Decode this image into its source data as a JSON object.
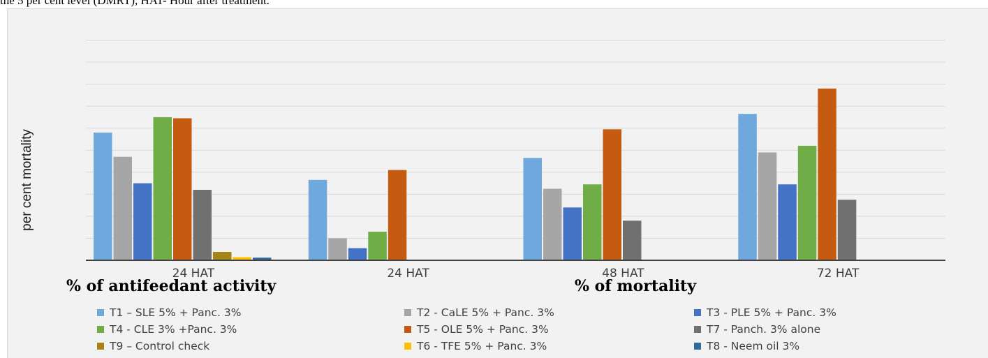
{
  "caption": "the 5 per cent level (DMRT), HAT- Hour after treatment.",
  "group_titles": {
    "antifeedant": "% of antifeedant activity",
    "mortality": "% of mortality"
  },
  "colors": {
    "panel_background": "#f2f2f2",
    "gridline": "#d9d9d9",
    "axis": "#404040"
  },
  "chart_data": {
    "type": "bar",
    "title": "",
    "xlabel": "",
    "ylabel": "per cent mortality",
    "ylim": [
      0,
      100
    ],
    "y_tick_labels_shown": false,
    "grid": true,
    "legend_position": "bottom",
    "categories": [
      "24 HAT",
      "24 HAT",
      "48 HAT",
      "72 HAT"
    ],
    "series": [
      {
        "name": "T1 – SLE 5% + Panc. 3%",
        "color": "#6fa8dc",
        "values": [
          58,
          36.5,
          46.5,
          66.5
        ]
      },
      {
        "name": "T2 - CaLE 5% + Panc. 3%",
        "color": "#a6a6a6",
        "values": [
          47,
          10,
          32.5,
          49
        ]
      },
      {
        "name": "T3 - PLE 5% +  Panc. 3%",
        "color": "#4472c4",
        "values": [
          35,
          5.5,
          24,
          34.5
        ]
      },
      {
        "name": "T4 - CLE 3% +Panc. 3%",
        "color": "#70ad47",
        "values": [
          65,
          13,
          34.5,
          52
        ]
      },
      {
        "name": "T5 - OLE 5% + Panc. 3%",
        "color": "#c55a11",
        "values": [
          64.5,
          41,
          59.5,
          78
        ]
      },
      {
        "name": "T7 - Panch. 3%  alone",
        "color": "#707070",
        "values": [
          32,
          0,
          18,
          27.5
        ]
      },
      {
        "name": "T9 – Control check",
        "color": "#a5841a",
        "values": [
          3.8,
          0,
          0,
          0
        ]
      },
      {
        "name": "T6 - TFE 5%  + Panc. 3%",
        "color": "#ffc000",
        "values": [
          1.4,
          0,
          0,
          0
        ]
      },
      {
        "name": "T8 - Neem oil 3%",
        "color": "#2e6a9e",
        "values": [
          1.2,
          0,
          0,
          0
        ]
      }
    ]
  }
}
